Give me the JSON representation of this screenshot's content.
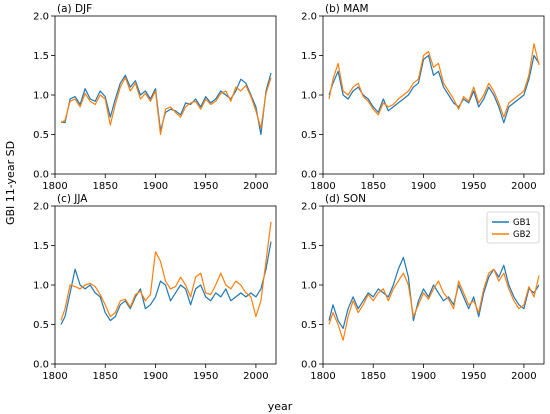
{
  "chart_data": {
    "type": "line",
    "xlabel": "year",
    "ylabel": "GBI 11-year SD",
    "xlim": [
      1800,
      2020
    ],
    "ylim": [
      0.0,
      2.0
    ],
    "xticks": [
      "1800",
      "1850",
      "1900",
      "1950",
      "2000"
    ],
    "yticks": [
      "0.0",
      "0.5",
      "1.0",
      "1.5",
      "2.0"
    ],
    "legend": {
      "placement": "top-right",
      "panel": 3
    },
    "colors": {
      "GB1": "#1f77b4",
      "GB2": "#ff7f0e"
    },
    "panels": [
      {
        "title": "(a) DJF",
        "series": [
          {
            "name": "GB1",
            "x": [
              1806,
              1810,
              1815,
              1820,
              1825,
              1830,
              1835,
              1840,
              1845,
              1850,
              1855,
              1860,
              1865,
              1870,
              1875,
              1880,
              1885,
              1890,
              1895,
              1900,
              1905,
              1910,
              1915,
              1920,
              1925,
              1930,
              1935,
              1940,
              1945,
              1950,
              1955,
              1960,
              1965,
              1970,
              1975,
              1980,
              1985,
              1990,
              1995,
              2000,
              2005,
              2010,
              2015
            ],
            "y": [
              0.66,
              0.65,
              0.95,
              0.98,
              0.88,
              1.08,
              0.95,
              0.92,
              1.05,
              0.98,
              0.72,
              0.95,
              1.15,
              1.25,
              1.1,
              1.18,
              1.0,
              1.05,
              0.95,
              1.08,
              0.55,
              0.78,
              0.82,
              0.8,
              0.75,
              0.9,
              0.88,
              0.95,
              0.85,
              0.98,
              0.9,
              0.95,
              1.05,
              1.0,
              0.95,
              1.05,
              1.2,
              1.15,
              1.0,
              0.85,
              0.5,
              1.05,
              1.28
            ]
          },
          {
            "name": "GB2",
            "x": [
              1806,
              1810,
              1815,
              1820,
              1825,
              1830,
              1835,
              1840,
              1845,
              1850,
              1855,
              1860,
              1865,
              1870,
              1875,
              1880,
              1885,
              1890,
              1895,
              1900,
              1905,
              1910,
              1915,
              1920,
              1925,
              1930,
              1935,
              1940,
              1945,
              1950,
              1955,
              1960,
              1965,
              1970,
              1975,
              1980,
              1985,
              1990,
              1995,
              2000,
              2005,
              2010,
              2015
            ],
            "y": [
              0.65,
              0.68,
              0.92,
              0.95,
              0.85,
              1.02,
              0.92,
              0.88,
              1.0,
              0.95,
              0.62,
              0.88,
              1.1,
              1.22,
              1.05,
              1.15,
              0.95,
              1.02,
              0.92,
              1.05,
              0.5,
              0.82,
              0.85,
              0.78,
              0.72,
              0.85,
              0.9,
              0.92,
              0.82,
              0.95,
              0.88,
              0.92,
              1.02,
              1.05,
              0.92,
              1.1,
              1.05,
              1.12,
              0.98,
              0.8,
              0.58,
              1.02,
              1.22
            ]
          }
        ]
      },
      {
        "title": "(b) MAM",
        "series": [
          {
            "name": "GB1",
            "x": [
              1806,
              1810,
              1815,
              1820,
              1825,
              1830,
              1835,
              1840,
              1845,
              1850,
              1855,
              1860,
              1865,
              1870,
              1875,
              1880,
              1885,
              1890,
              1895,
              1900,
              1905,
              1910,
              1915,
              1920,
              1925,
              1930,
              1935,
              1940,
              1945,
              1950,
              1955,
              1960,
              1965,
              1970,
              1975,
              1980,
              1985,
              1990,
              1995,
              2000,
              2005,
              2010,
              2015
            ],
            "y": [
              1.0,
              1.15,
              1.3,
              1.0,
              0.95,
              1.05,
              1.1,
              1.0,
              0.95,
              0.85,
              0.78,
              0.95,
              0.8,
              0.85,
              0.9,
              0.95,
              1.0,
              1.1,
              1.15,
              1.45,
              1.5,
              1.25,
              1.3,
              1.1,
              1.0,
              0.9,
              0.85,
              0.95,
              0.9,
              1.05,
              0.85,
              0.95,
              1.1,
              1.0,
              0.85,
              0.65,
              0.85,
              0.9,
              0.95,
              1.0,
              1.2,
              1.5,
              1.4
            ]
          },
          {
            "name": "GB2",
            "x": [
              1806,
              1810,
              1815,
              1820,
              1825,
              1830,
              1835,
              1840,
              1845,
              1850,
              1855,
              1860,
              1865,
              1870,
              1875,
              1880,
              1885,
              1890,
              1895,
              1900,
              1905,
              1910,
              1915,
              1920,
              1925,
              1930,
              1935,
              1940,
              1945,
              1950,
              1955,
              1960,
              1965,
              1970,
              1975,
              1980,
              1985,
              1990,
              1995,
              2000,
              2005,
              2010,
              2015
            ],
            "y": [
              0.95,
              1.2,
              1.4,
              1.05,
              1.0,
              1.1,
              1.15,
              0.98,
              0.92,
              0.82,
              0.75,
              0.9,
              0.85,
              0.88,
              0.95,
              1.0,
              1.05,
              1.15,
              1.2,
              1.5,
              1.55,
              1.35,
              1.4,
              1.15,
              1.05,
              0.95,
              0.82,
              0.98,
              0.92,
              1.1,
              0.9,
              1.0,
              1.15,
              1.05,
              0.9,
              0.72,
              0.9,
              0.95,
              1.0,
              1.05,
              1.25,
              1.65,
              1.38
            ]
          }
        ]
      },
      {
        "title": "(c) JJA",
        "series": [
          {
            "name": "GB1",
            "x": [
              1806,
              1810,
              1815,
              1820,
              1825,
              1830,
              1835,
              1840,
              1845,
              1850,
              1855,
              1860,
              1865,
              1870,
              1875,
              1880,
              1885,
              1890,
              1895,
              1900,
              1905,
              1910,
              1915,
              1920,
              1925,
              1930,
              1935,
              1940,
              1945,
              1950,
              1955,
              1960,
              1965,
              1970,
              1975,
              1980,
              1985,
              1990,
              1995,
              2000,
              2005,
              2010,
              2015
            ],
            "y": [
              0.5,
              0.6,
              0.9,
              1.2,
              1.0,
              0.95,
              1.0,
              0.9,
              0.85,
              0.65,
              0.55,
              0.6,
              0.75,
              0.8,
              0.7,
              0.85,
              0.95,
              0.7,
              0.75,
              0.85,
              1.05,
              1.0,
              0.8,
              0.9,
              1.0,
              0.95,
              0.75,
              0.95,
              1.0,
              0.85,
              0.8,
              0.9,
              0.85,
              0.95,
              0.8,
              0.85,
              0.9,
              0.85,
              0.9,
              0.85,
              0.95,
              1.2,
              1.55
            ]
          },
          {
            "name": "GB2",
            "x": [
              1806,
              1810,
              1815,
              1820,
              1825,
              1830,
              1835,
              1840,
              1845,
              1850,
              1855,
              1860,
              1865,
              1870,
              1875,
              1880,
              1885,
              1890,
              1895,
              1900,
              1905,
              1910,
              1915,
              1920,
              1925,
              1930,
              1935,
              1940,
              1945,
              1950,
              1955,
              1960,
              1965,
              1970,
              1975,
              1980,
              1985,
              1990,
              1995,
              2000,
              2005,
              2010,
              2015
            ],
            "y": [
              0.55,
              0.7,
              1.0,
              0.98,
              0.95,
              1.0,
              1.02,
              0.98,
              0.88,
              0.75,
              0.6,
              0.65,
              0.8,
              0.82,
              0.72,
              0.88,
              0.92,
              0.8,
              0.88,
              1.42,
              1.3,
              1.05,
              0.95,
              0.98,
              1.1,
              1.0,
              0.85,
              1.1,
              1.15,
              0.9,
              0.88,
              1.0,
              1.15,
              1.0,
              0.95,
              1.05,
              1.0,
              0.9,
              0.85,
              0.6,
              0.8,
              1.3,
              1.8
            ]
          }
        ]
      },
      {
        "title": "(d) SON",
        "series": [
          {
            "name": "GB1",
            "x": [
              1806,
              1810,
              1815,
              1820,
              1825,
              1830,
              1835,
              1840,
              1845,
              1850,
              1855,
              1860,
              1865,
              1870,
              1875,
              1880,
              1885,
              1890,
              1895,
              1900,
              1905,
              1910,
              1915,
              1920,
              1925,
              1930,
              1935,
              1940,
              1945,
              1950,
              1955,
              1960,
              1965,
              1970,
              1975,
              1980,
              1985,
              1990,
              1995,
              2000,
              2005,
              2010,
              2015
            ],
            "y": [
              0.55,
              0.75,
              0.55,
              0.45,
              0.7,
              0.85,
              0.7,
              0.8,
              0.9,
              0.85,
              0.95,
              0.9,
              0.85,
              1.0,
              1.2,
              1.35,
              1.1,
              0.55,
              0.8,
              0.95,
              0.85,
              1.0,
              0.9,
              0.8,
              0.85,
              0.75,
              1.0,
              0.85,
              0.7,
              0.85,
              0.6,
              0.9,
              1.1,
              1.2,
              1.1,
              1.25,
              1.0,
              0.85,
              0.75,
              0.7,
              0.95,
              0.9,
              1.0
            ]
          },
          {
            "name": "GB2",
            "x": [
              1806,
              1810,
              1815,
              1820,
              1825,
              1830,
              1835,
              1840,
              1845,
              1850,
              1855,
              1860,
              1865,
              1870,
              1875,
              1880,
              1885,
              1890,
              1895,
              1900,
              1905,
              1910,
              1915,
              1920,
              1925,
              1930,
              1935,
              1940,
              1945,
              1950,
              1955,
              1960,
              1965,
              1970,
              1975,
              1980,
              1985,
              1990,
              1995,
              2000,
              2005,
              2010,
              2015
            ],
            "y": [
              0.5,
              0.65,
              0.5,
              0.3,
              0.6,
              0.8,
              0.65,
              0.75,
              0.88,
              0.8,
              0.9,
              0.95,
              0.8,
              0.95,
              1.05,
              1.15,
              1.0,
              0.6,
              0.75,
              0.9,
              0.82,
              0.95,
              1.05,
              0.9,
              0.82,
              0.7,
              1.05,
              0.9,
              0.75,
              0.8,
              0.65,
              0.95,
              1.15,
              1.2,
              1.05,
              1.15,
              0.95,
              0.8,
              0.7,
              0.75,
              0.98,
              0.85,
              1.12
            ]
          }
        ]
      }
    ]
  }
}
